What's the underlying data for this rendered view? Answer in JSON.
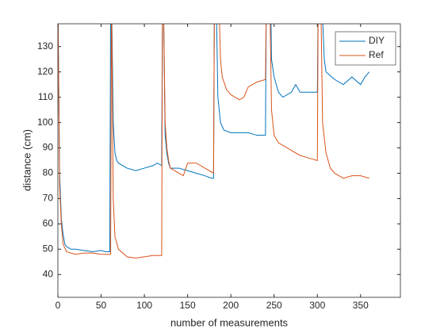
{
  "chart_data": {
    "type": "line",
    "xlabel": "number of measurements",
    "ylabel": "distance (cm)",
    "xlim": [
      0,
      396
    ],
    "ylim": [
      31,
      139
    ],
    "xticks": [
      0,
      50,
      100,
      150,
      200,
      250,
      300,
      350
    ],
    "yticks": [
      40,
      50,
      60,
      70,
      80,
      90,
      100,
      110,
      120,
      130
    ],
    "legend": "top-right",
    "series": [
      {
        "name": "DIY",
        "color": "#0072bd",
        "x": [
          0,
          2,
          4,
          6,
          8,
          10,
          15,
          20,
          30,
          40,
          50,
          55,
          60,
          61,
          62,
          64,
          66,
          68,
          70,
          80,
          90,
          100,
          110,
          115,
          120,
          121,
          122,
          124,
          126,
          128,
          130,
          140,
          150,
          160,
          170,
          178,
          180,
          181,
          183,
          185,
          188,
          192,
          200,
          210,
          220,
          230,
          238,
          240,
          241,
          246,
          247,
          250,
          255,
          260,
          270,
          275,
          280,
          290,
          300,
          301,
          305,
          308,
          310,
          320,
          330,
          340,
          350,
          355,
          360
        ],
        "values": [
          150,
          80,
          62,
          56,
          52,
          51,
          50,
          50,
          49.5,
          49,
          49.5,
          49,
          49,
          150,
          150,
          100,
          88,
          85,
          84,
          82,
          81,
          82,
          83,
          84,
          83,
          150,
          150,
          95,
          88,
          84,
          82,
          82,
          81,
          80,
          79,
          78,
          78,
          150,
          150,
          110,
          100,
          97,
          96,
          96,
          96,
          95,
          95,
          95,
          150,
          150,
          125,
          118,
          112,
          110,
          112,
          115,
          112,
          112,
          112,
          150,
          150,
          125,
          120,
          117,
          115,
          118,
          115,
          118,
          120
        ]
      },
      {
        "name": "Ref",
        "color": "#d95319",
        "x": [
          0,
          2,
          4,
          6,
          10,
          20,
          30,
          40,
          50,
          61,
          62,
          64,
          66,
          70,
          80,
          90,
          100,
          110,
          120,
          121,
          122,
          124,
          126,
          128,
          130,
          140,
          145,
          150,
          160,
          170,
          180,
          181,
          186,
          188,
          190,
          195,
          200,
          205,
          210,
          215,
          220,
          230,
          240,
          241,
          245,
          247,
          250,
          255,
          260,
          270,
          280,
          290,
          300,
          301,
          304,
          306,
          310,
          315,
          320,
          330,
          340,
          350,
          360
        ],
        "values": [
          150,
          75,
          60,
          52,
          49,
          48,
          48.5,
          48.5,
          48,
          48,
          150,
          70,
          55,
          50,
          47,
          46.5,
          47,
          47.5,
          47.5,
          150,
          150,
          100,
          90,
          85,
          82,
          80,
          79,
          84,
          84,
          82,
          80,
          150,
          150,
          125,
          118,
          113,
          111,
          110,
          109,
          110,
          114,
          116,
          117,
          150,
          150,
          105,
          95,
          92,
          91,
          89,
          87,
          86,
          85,
          150,
          150,
          100,
          88,
          82,
          80,
          78,
          79,
          79,
          78
        ]
      }
    ]
  }
}
